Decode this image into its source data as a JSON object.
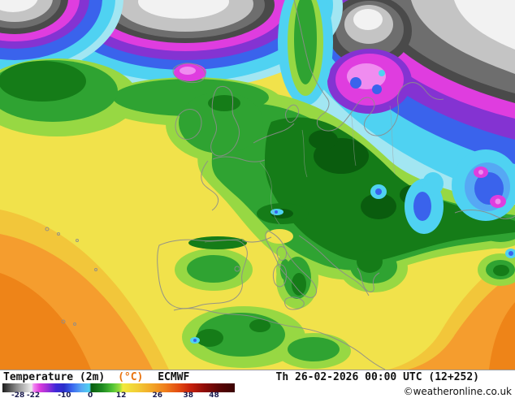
{
  "legend": {
    "title": "Temperature (2m)",
    "unit": "(°C)",
    "unit_color": "#e8720e",
    "model": "ECMWF",
    "datetime": "Th 26-02-2026 00:00 UTC (12+252)",
    "copyright": "©weatheronline.co.uk",
    "tick_color": "#1c1c50",
    "scale": {
      "ticks": [
        {
          "label": "-28",
          "pos": 6.7
        },
        {
          "label": "-22",
          "pos": 13.3
        },
        {
          "label": "-10",
          "pos": 26.7
        },
        {
          "label": "0",
          "pos": 37.8
        },
        {
          "label": "12",
          "pos": 51.1
        },
        {
          "label": "26",
          "pos": 66.7
        },
        {
          "label": "38",
          "pos": 80.0
        },
        {
          "label": "48",
          "pos": 91.1
        }
      ],
      "gradient_stops": [
        {
          "pos": 0,
          "color": "#1c1c1c"
        },
        {
          "pos": 6,
          "color": "#8a8a8a"
        },
        {
          "pos": 12.5,
          "color": "#ececec"
        },
        {
          "pos": 13.5,
          "color": "#f285f2"
        },
        {
          "pos": 16,
          "color": "#dd3ddd"
        },
        {
          "pos": 19.5,
          "color": "#9a30d8"
        },
        {
          "pos": 23,
          "color": "#4028d8"
        },
        {
          "pos": 26.5,
          "color": "#2a2ec9"
        },
        {
          "pos": 30,
          "color": "#3a66ee"
        },
        {
          "pos": 34,
          "color": "#57a9f4"
        },
        {
          "pos": 37.5,
          "color": "#4fd2f2"
        },
        {
          "pos": 38.2,
          "color": "#0a5c0e"
        },
        {
          "pos": 43,
          "color": "#1d8a20"
        },
        {
          "pos": 47.5,
          "color": "#53c437"
        },
        {
          "pos": 50.5,
          "color": "#9ade3f"
        },
        {
          "pos": 51.8,
          "color": "#f2ea3c"
        },
        {
          "pos": 58,
          "color": "#f2cd36"
        },
        {
          "pos": 64,
          "color": "#f2a828"
        },
        {
          "pos": 70,
          "color": "#ef7f1c"
        },
        {
          "pos": 76,
          "color": "#e24a12"
        },
        {
          "pos": 81,
          "color": "#c6200c"
        },
        {
          "pos": 87,
          "color": "#8e0c08"
        },
        {
          "pos": 93,
          "color": "#5c0505"
        },
        {
          "pos": 100,
          "color": "#3a0303"
        }
      ]
    }
  },
  "map": {
    "palette": {
      "white": "#f2f2f2",
      "light_gray": "#c4c4c4",
      "gray": "#6e6e6e",
      "dark_gray": "#4a4a4a",
      "pink": "#f08cf0",
      "magenta": "#df3ddf",
      "purple": "#8433d2",
      "dark_blue": "#2929c9",
      "blue": "#3a63ec",
      "light_blue": "#56a8f4",
      "cyan": "#4fd2f2",
      "pale_cyan": "#a2e6f2",
      "deep_green": "#0a5c0e",
      "dark_green": "#157c18",
      "green": "#2fa332",
      "light_green": "#97d843",
      "yellow": "#f1e24b",
      "gold": "#f2c63a",
      "orange": "#f59d2e",
      "deep_orange": "#ee8418",
      "coastline": "#8c8c8c",
      "border": "#a0a0a0"
    }
  }
}
